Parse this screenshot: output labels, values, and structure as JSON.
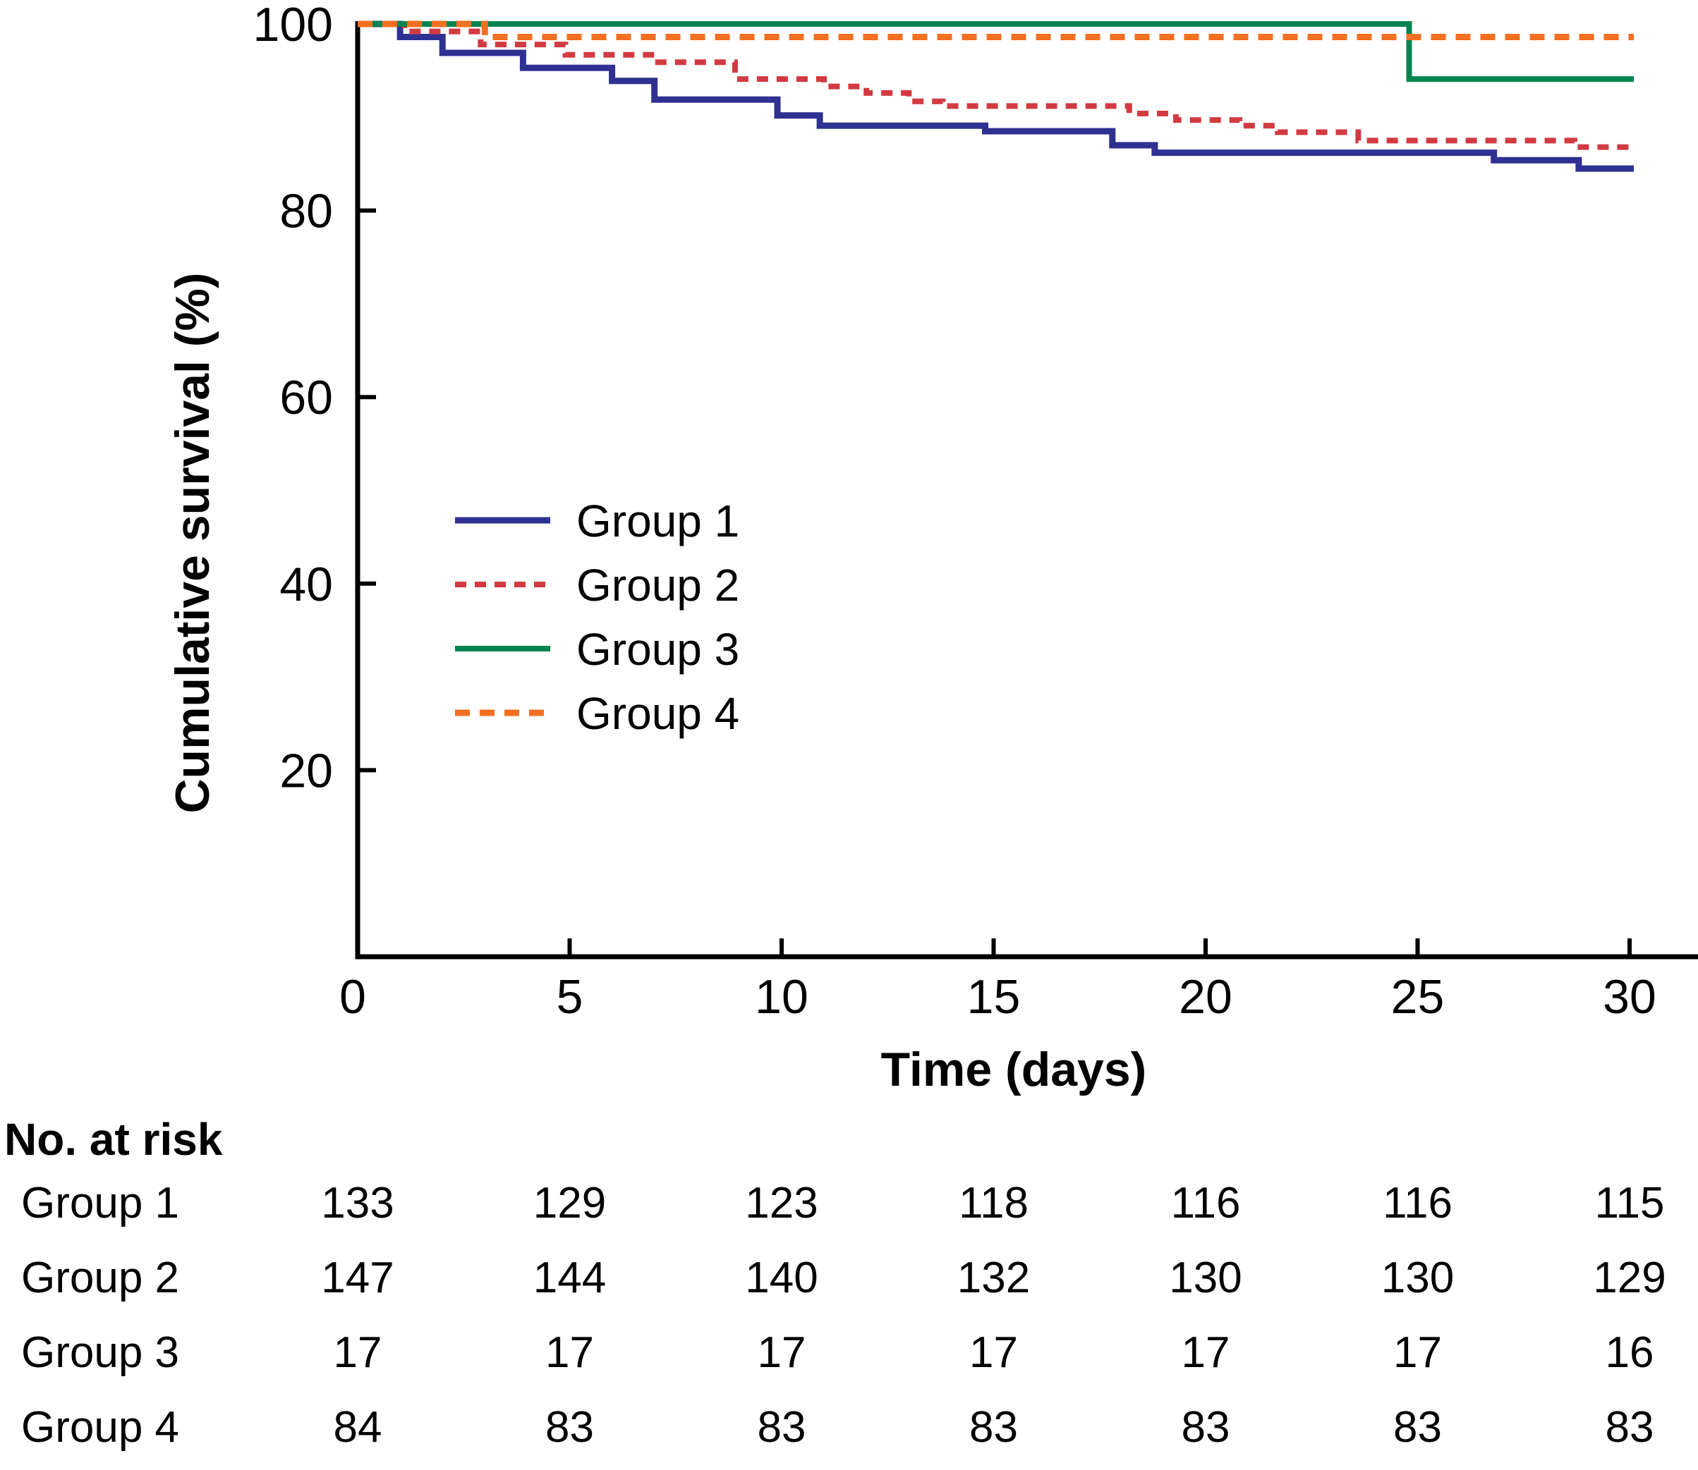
{
  "figure": {
    "background": "#ffffff",
    "axis_color": "#000000"
  },
  "chart_data": {
    "type": "line",
    "subtype": "kaplan-meier-step",
    "title": "",
    "xlabel": "Time (days)",
    "ylabel": "Cumulative survival (%)",
    "xlim": [
      0,
      31.6
    ],
    "ylim": [
      0,
      100
    ],
    "x_ticks": [
      0,
      5,
      10,
      15,
      20,
      25,
      30
    ],
    "y_ticks": [
      20,
      40,
      60,
      80,
      100
    ],
    "grid": false,
    "legend_position": "center-left-inside",
    "end_x": 30.1,
    "series": [
      {
        "name": "Group 1",
        "color": "#2e3192",
        "style": "solid",
        "width": 9,
        "dash": null,
        "points": [
          [
            0,
            100
          ],
          [
            1,
            98.6
          ],
          [
            2,
            96.9
          ],
          [
            3.9,
            95.3
          ],
          [
            6,
            93.9
          ],
          [
            7,
            91.9
          ],
          [
            9.9,
            90.2
          ],
          [
            10.9,
            89.1
          ],
          [
            14.8,
            88.5
          ],
          [
            17.8,
            87.0
          ],
          [
            18.8,
            86.2
          ],
          [
            26.8,
            85.4
          ],
          [
            28.8,
            84.5
          ]
        ]
      },
      {
        "name": "Group 2",
        "color": "#d23a42",
        "style": "dashed",
        "width": 8,
        "dash": [
          16,
          12
        ],
        "points": [
          [
            0,
            100
          ],
          [
            1.1,
            99.2
          ],
          [
            2.9,
            97.8
          ],
          [
            4.9,
            96.7
          ],
          [
            7,
            95.9
          ],
          [
            8.9,
            94.1
          ],
          [
            11,
            93.3
          ],
          [
            12,
            92.6
          ],
          [
            13,
            91.7
          ],
          [
            13.8,
            91.2
          ],
          [
            18.2,
            90.4
          ],
          [
            19.3,
            89.7
          ],
          [
            20.8,
            89.1
          ],
          [
            21.7,
            88.4
          ],
          [
            23.6,
            87.5
          ],
          [
            28.7,
            86.8
          ]
        ]
      },
      {
        "name": "Group 3",
        "color": "#00854f",
        "style": "solid",
        "width": 8,
        "dash": null,
        "points": [
          [
            0,
            100
          ],
          [
            24.8,
            94.1
          ]
        ]
      },
      {
        "name": "Group 4",
        "color": "#f36f21",
        "style": "dashed",
        "width": 9,
        "dash": [
          21,
          14
        ],
        "points": [
          [
            0,
            100
          ],
          [
            3,
            98.6
          ]
        ]
      }
    ]
  },
  "risk_table": {
    "header": "No. at risk",
    "time_points": [
      0,
      5,
      10,
      15,
      20,
      25,
      30
    ],
    "rows": [
      {
        "label": "Group 1",
        "counts": [
          133,
          129,
          123,
          118,
          116,
          116,
          115
        ]
      },
      {
        "label": "Group 2",
        "counts": [
          147,
          144,
          140,
          132,
          130,
          130,
          129
        ]
      },
      {
        "label": "Group 3",
        "counts": [
          17,
          17,
          17,
          17,
          17,
          17,
          16
        ]
      },
      {
        "label": "Group 4",
        "counts": [
          84,
          83,
          83,
          83,
          83,
          83,
          83
        ]
      }
    ]
  }
}
